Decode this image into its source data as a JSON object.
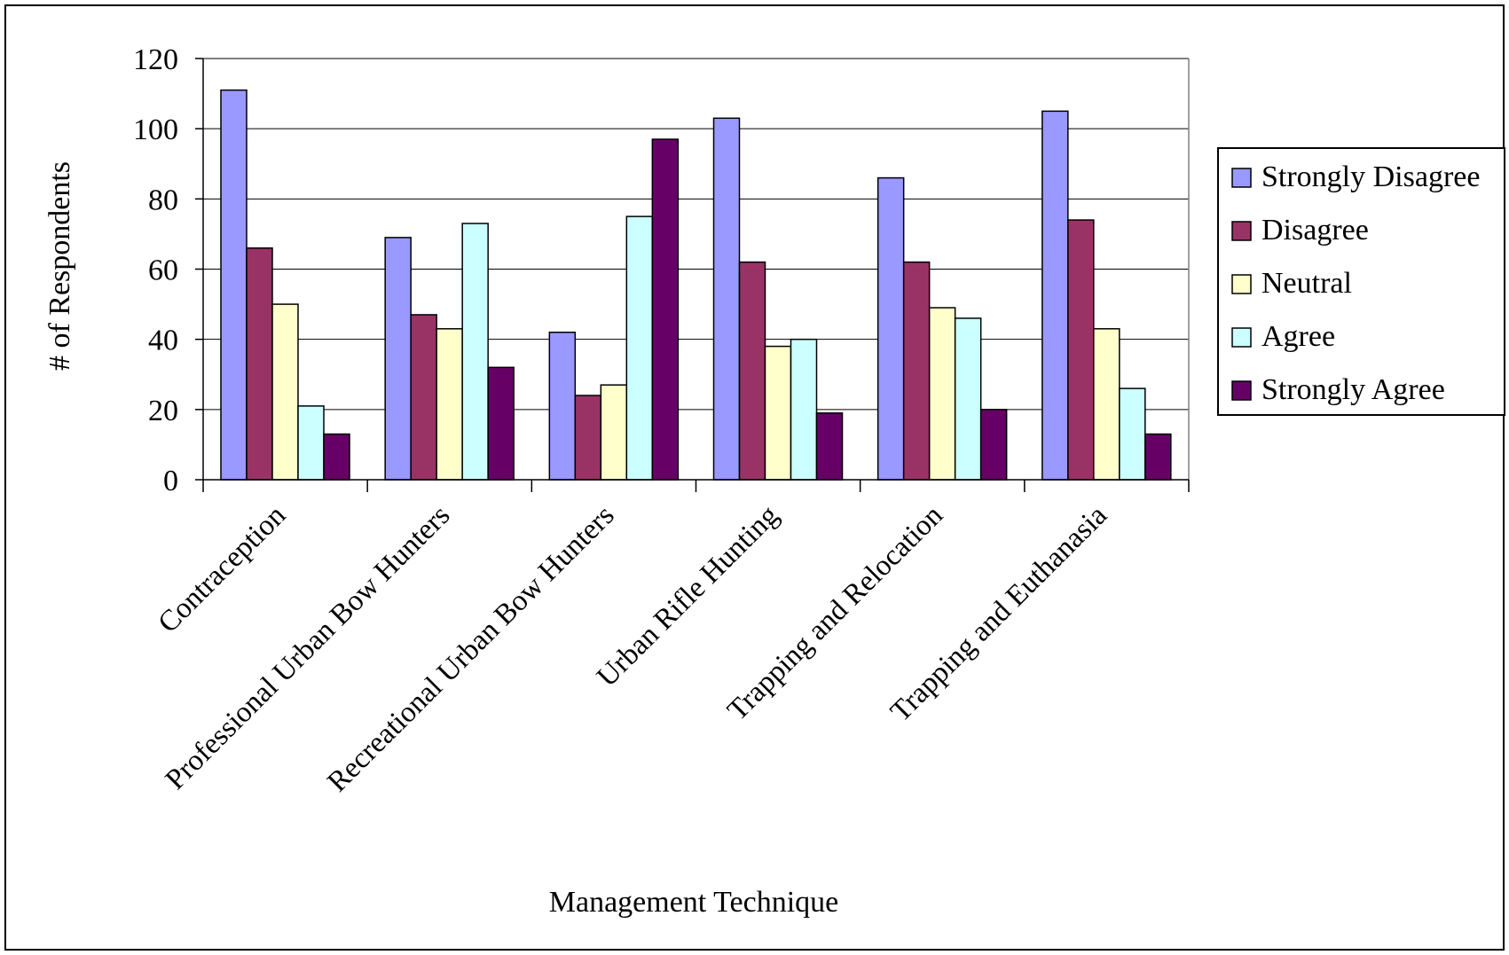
{
  "chart_data": {
    "type": "bar",
    "xlabel": "Management Technique",
    "ylabel": "# of Respondents",
    "ylim": [
      0,
      120
    ],
    "yticks": [
      0,
      20,
      40,
      60,
      80,
      100,
      120
    ],
    "grid": "horizontal",
    "legend_position": "right",
    "categories": [
      "Contraception",
      "Professional Urban Bow Hunters",
      "Recreational Urban Bow Hunters",
      "Urban Rifle Hunting",
      "Trapping and Relocation",
      "Trapping and Euthanasia"
    ],
    "series": [
      {
        "name": "Strongly Disagree",
        "color": "#9999ff",
        "values": [
          111,
          69,
          42,
          103,
          86,
          105
        ]
      },
      {
        "name": "Disagree",
        "color": "#993366",
        "values": [
          66,
          47,
          24,
          62,
          62,
          74
        ]
      },
      {
        "name": "Neutral",
        "color": "#ffffcc",
        "values": [
          50,
          43,
          27,
          38,
          49,
          43
        ]
      },
      {
        "name": "Agree",
        "color": "#ccffff",
        "values": [
          21,
          73,
          75,
          40,
          46,
          26
        ]
      },
      {
        "name": "Strongly Agree",
        "color": "#660066",
        "values": [
          13,
          32,
          97,
          19,
          20,
          13
        ]
      }
    ]
  }
}
